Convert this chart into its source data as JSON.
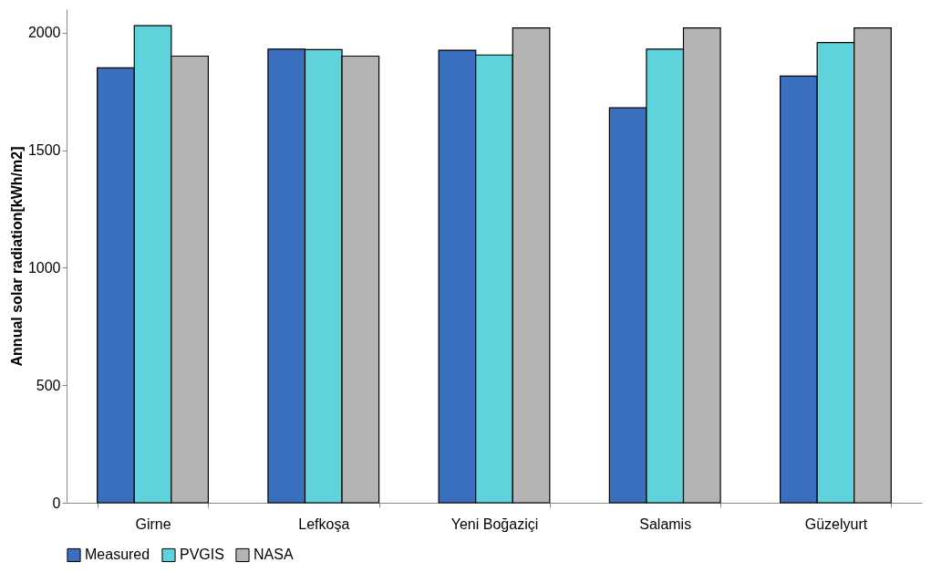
{
  "chart_data": {
    "type": "bar",
    "ylabel": "Annual solar radiation[kWh/m2]",
    "categories": [
      "Girne",
      "Lefkoşa",
      "Yeni Boğaziçi",
      "Salamis",
      "Güzelyurt"
    ],
    "series": [
      {
        "name": "Measured",
        "color": "#3a6fc0",
        "values": [
          1850,
          1930,
          1925,
          1680,
          1815
        ]
      },
      {
        "name": "PVGIS",
        "color": "#5fd3dc",
        "values": [
          2030,
          1928,
          1905,
          1930,
          1958
        ]
      },
      {
        "name": "NASA",
        "color": "#b4b4b4",
        "values": [
          1900,
          1900,
          2020,
          2020,
          2020
        ]
      }
    ],
    "ylim": [
      0,
      2100
    ],
    "yticks": [
      0,
      500,
      1000,
      1500,
      2000
    ],
    "grid": false,
    "legend": "bottom"
  }
}
